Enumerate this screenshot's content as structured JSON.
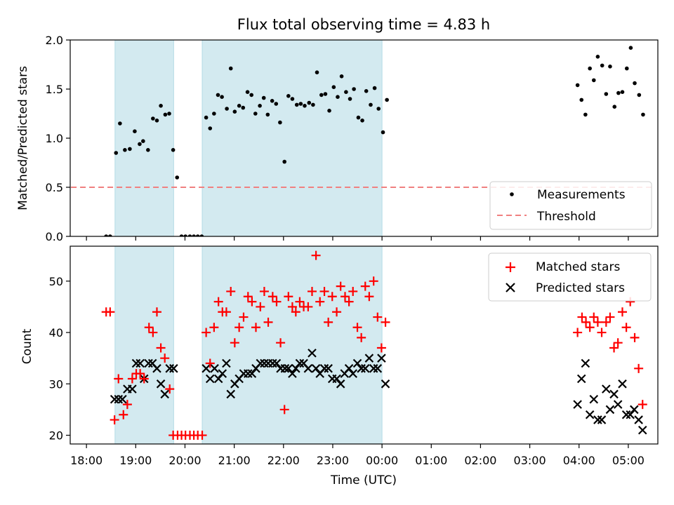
{
  "chart_data": {
    "type": "scatter",
    "title": "Flux total observing time = 4.83 h",
    "xlabel": "Time (UTC)",
    "x_unit": "hours since 18:00 UTC",
    "xlim": [
      -0.33,
      11.6
    ],
    "x_ticks": [
      {
        "x": 0,
        "label": "18:00"
      },
      {
        "x": 1,
        "label": "19:00"
      },
      {
        "x": 2,
        "label": "20:00"
      },
      {
        "x": 3,
        "label": "21:00"
      },
      {
        "x": 4,
        "label": "22:00"
      },
      {
        "x": 5,
        "label": "23:00"
      },
      {
        "x": 6,
        "label": "00:00"
      },
      {
        "x": 7,
        "label": "01:00"
      },
      {
        "x": 8,
        "label": "02:00"
      },
      {
        "x": 9,
        "label": "03:00"
      },
      {
        "x": 10,
        "label": "04:00"
      },
      {
        "x": 11,
        "label": "05:00"
      }
    ],
    "shaded_intervals": [
      [
        0.58,
        1.77
      ],
      [
        2.35,
        6.0
      ]
    ],
    "shade_color": "#d3eaf0",
    "top_panel": {
      "ylabel": "Matched/Predicted stars",
      "ylim": [
        0,
        2.0
      ],
      "y_ticks": [
        "0.0",
        "0.5",
        "1.0",
        "1.5",
        "2.0"
      ],
      "threshold": {
        "name": "Threshold",
        "value": 0.5,
        "x_range": [
          -0.5,
          11.5
        ],
        "color": "#f08080"
      },
      "legend": {
        "placement": "lower right",
        "measurements_label": "Measurements",
        "threshold_label": "Threshold"
      },
      "series": [
        {
          "name": "Measurements",
          "color": "#000000",
          "points": [
            [
              0.4,
              0.0
            ],
            [
              0.48,
              0.0
            ],
            [
              0.6,
              0.85
            ],
            [
              0.68,
              1.15
            ],
            [
              0.78,
              0.88
            ],
            [
              0.88,
              0.89
            ],
            [
              0.98,
              1.07
            ],
            [
              1.08,
              0.94
            ],
            [
              1.15,
              0.97
            ],
            [
              1.25,
              0.88
            ],
            [
              1.35,
              1.2
            ],
            [
              1.43,
              1.18
            ],
            [
              1.51,
              1.33
            ],
            [
              1.6,
              1.24
            ],
            [
              1.68,
              1.25
            ],
            [
              1.76,
              0.88
            ],
            [
              1.84,
              0.6
            ],
            [
              1.93,
              0.0
            ],
            [
              2.01,
              0.0
            ],
            [
              2.1,
              0.0
            ],
            [
              2.18,
              0.0
            ],
            [
              2.26,
              0.0
            ],
            [
              2.34,
              0.0
            ],
            [
              2.43,
              1.21
            ],
            [
              2.51,
              1.1
            ],
            [
              2.59,
              1.25
            ],
            [
              2.67,
              1.44
            ],
            [
              2.75,
              1.42
            ],
            [
              2.85,
              1.3
            ],
            [
              2.93,
              1.71
            ],
            [
              3.01,
              1.27
            ],
            [
              3.1,
              1.33
            ],
            [
              3.18,
              1.31
            ],
            [
              3.27,
              1.47
            ],
            [
              3.35,
              1.44
            ],
            [
              3.43,
              1.25
            ],
            [
              3.52,
              1.33
            ],
            [
              3.6,
              1.41
            ],
            [
              3.68,
              1.24
            ],
            [
              3.77,
              1.38
            ],
            [
              3.85,
              1.35
            ],
            [
              3.93,
              1.16
            ],
            [
              4.02,
              0.76
            ],
            [
              4.1,
              1.43
            ],
            [
              4.18,
              1.4
            ],
            [
              4.27,
              1.34
            ],
            [
              4.35,
              1.35
            ],
            [
              4.43,
              1.33
            ],
            [
              4.52,
              1.36
            ],
            [
              4.6,
              1.34
            ],
            [
              4.68,
              1.67
            ],
            [
              4.77,
              1.44
            ],
            [
              4.85,
              1.45
            ],
            [
              4.93,
              1.28
            ],
            [
              5.02,
              1.52
            ],
            [
              5.1,
              1.42
            ],
            [
              5.18,
              1.63
            ],
            [
              5.27,
              1.47
            ],
            [
              5.35,
              1.4
            ],
            [
              5.43,
              1.5
            ],
            [
              5.52,
              1.21
            ],
            [
              5.6,
              1.18
            ],
            [
              5.68,
              1.48
            ],
            [
              5.77,
              1.34
            ],
            [
              5.85,
              1.51
            ],
            [
              5.93,
              1.3
            ],
            [
              6.02,
              1.06
            ],
            [
              6.1,
              1.39
            ],
            [
              9.97,
              1.54
            ],
            [
              10.05,
              1.39
            ],
            [
              10.13,
              1.24
            ],
            [
              10.22,
              1.71
            ],
            [
              10.3,
              1.59
            ],
            [
              10.38,
              1.83
            ],
            [
              10.47,
              1.74
            ],
            [
              10.55,
              1.45
            ],
            [
              10.63,
              1.73
            ],
            [
              10.72,
              1.32
            ],
            [
              10.8,
              1.46
            ],
            [
              10.88,
              1.47
            ],
            [
              10.97,
              1.71
            ],
            [
              11.05,
              1.92
            ],
            [
              11.13,
              1.56
            ],
            [
              11.22,
              1.44
            ],
            [
              11.3,
              1.24
            ]
          ]
        }
      ]
    },
    "bottom_panel": {
      "ylabel": "Count",
      "ylim": [
        18.3,
        56.8
      ],
      "y_ticks": [
        20,
        30,
        40,
        50
      ],
      "legend": {
        "placement": "upper right",
        "matched_label": "Matched stars",
        "predicted_label": "Predicted stars"
      },
      "series": [
        {
          "name": "Matched stars",
          "marker": "+",
          "color": "#ff0000",
          "points": [
            [
              0.4,
              44
            ],
            [
              0.48,
              44
            ],
            [
              0.57,
              23
            ],
            [
              0.65,
              31
            ],
            [
              0.75,
              24
            ],
            [
              0.83,
              26
            ],
            [
              0.93,
              31
            ],
            [
              1.01,
              32
            ],
            [
              1.09,
              32
            ],
            [
              1.17,
              31
            ],
            [
              1.27,
              41
            ],
            [
              1.35,
              40
            ],
            [
              1.43,
              44
            ],
            [
              1.51,
              37
            ],
            [
              1.59,
              35
            ],
            [
              1.69,
              29
            ],
            [
              1.76,
              20
            ],
            [
              1.85,
              20
            ],
            [
              1.93,
              20
            ],
            [
              2.01,
              20
            ],
            [
              2.1,
              20
            ],
            [
              2.18,
              20
            ],
            [
              2.26,
              20
            ],
            [
              2.35,
              20
            ],
            [
              2.43,
              40
            ],
            [
              2.51,
              34
            ],
            [
              2.59,
              41
            ],
            [
              2.68,
              46
            ],
            [
              2.76,
              44
            ],
            [
              2.84,
              44
            ],
            [
              2.93,
              48
            ],
            [
              3.01,
              38
            ],
            [
              3.1,
              41
            ],
            [
              3.19,
              43
            ],
            [
              3.28,
              47
            ],
            [
              3.36,
              46
            ],
            [
              3.44,
              41
            ],
            [
              3.53,
              45
            ],
            [
              3.61,
              48
            ],
            [
              3.69,
              42
            ],
            [
              3.78,
              47
            ],
            [
              3.86,
              46
            ],
            [
              3.94,
              38
            ],
            [
              4.02,
              25
            ],
            [
              4.1,
              47
            ],
            [
              4.18,
              45
            ],
            [
              4.25,
              44
            ],
            [
              4.33,
              46
            ],
            [
              4.41,
              45
            ],
            [
              4.5,
              45
            ],
            [
              4.58,
              48
            ],
            [
              4.66,
              55
            ],
            [
              4.74,
              46
            ],
            [
              4.83,
              48
            ],
            [
              4.91,
              42
            ],
            [
              4.99,
              47
            ],
            [
              5.08,
              44
            ],
            [
              5.16,
              49
            ],
            [
              5.25,
              47
            ],
            [
              5.33,
              46
            ],
            [
              5.41,
              48
            ],
            [
              5.5,
              41
            ],
            [
              5.58,
              39
            ],
            [
              5.66,
              49
            ],
            [
              5.74,
              47
            ],
            [
              5.83,
              50
            ],
            [
              5.91,
              43
            ],
            [
              5.99,
              37
            ],
            [
              6.07,
              42
            ],
            [
              9.97,
              40
            ],
            [
              10.06,
              43
            ],
            [
              10.14,
              42
            ],
            [
              10.22,
              41
            ],
            [
              10.3,
              43
            ],
            [
              10.38,
              42
            ],
            [
              10.46,
              40
            ],
            [
              10.55,
              42
            ],
            [
              10.63,
              43
            ],
            [
              10.71,
              37
            ],
            [
              10.79,
              38
            ],
            [
              10.88,
              44
            ],
            [
              10.96,
              41
            ],
            [
              11.04,
              46
            ],
            [
              11.13,
              39
            ],
            [
              11.21,
              33
            ],
            [
              11.29,
              26
            ]
          ]
        },
        {
          "name": "Predicted stars",
          "marker": "x",
          "color": "#000000",
          "points": [
            [
              0.57,
              27
            ],
            [
              0.65,
              27
            ],
            [
              0.73,
              27
            ],
            [
              0.83,
              29
            ],
            [
              0.93,
              29
            ],
            [
              1.01,
              34
            ],
            [
              1.09,
              34
            ],
            [
              1.17,
              31
            ],
            [
              1.26,
              34
            ],
            [
              1.34,
              34
            ],
            [
              1.43,
              33
            ],
            [
              1.51,
              30
            ],
            [
              1.59,
              28
            ],
            [
              1.69,
              33
            ],
            [
              1.77,
              33
            ],
            [
              2.43,
              33
            ],
            [
              2.51,
              31
            ],
            [
              2.6,
              33
            ],
            [
              2.68,
              31
            ],
            [
              2.76,
              32
            ],
            [
              2.84,
              34
            ],
            [
              2.93,
              28
            ],
            [
              3.01,
              30
            ],
            [
              3.1,
              31
            ],
            [
              3.19,
              32
            ],
            [
              3.28,
              32
            ],
            [
              3.36,
              32
            ],
            [
              3.44,
              33
            ],
            [
              3.53,
              34
            ],
            [
              3.61,
              34
            ],
            [
              3.69,
              34
            ],
            [
              3.78,
              34
            ],
            [
              3.86,
              34
            ],
            [
              3.94,
              33
            ],
            [
              4.03,
              33
            ],
            [
              4.1,
              33
            ],
            [
              4.18,
              32
            ],
            [
              4.25,
              33
            ],
            [
              4.33,
              34
            ],
            [
              4.41,
              34
            ],
            [
              4.5,
              33
            ],
            [
              4.58,
              36
            ],
            [
              4.66,
              33
            ],
            [
              4.74,
              32
            ],
            [
              4.83,
              33
            ],
            [
              4.91,
              33
            ],
            [
              4.99,
              31
            ],
            [
              5.08,
              31
            ],
            [
              5.16,
              30
            ],
            [
              5.24,
              32
            ],
            [
              5.33,
              33
            ],
            [
              5.41,
              32
            ],
            [
              5.5,
              34
            ],
            [
              5.58,
              33
            ],
            [
              5.66,
              33
            ],
            [
              5.74,
              35
            ],
            [
              5.83,
              33
            ],
            [
              5.91,
              33
            ],
            [
              5.99,
              35
            ],
            [
              6.07,
              30
            ],
            [
              9.97,
              26
            ],
            [
              10.05,
              31
            ],
            [
              10.13,
              34
            ],
            [
              10.22,
              24
            ],
            [
              10.3,
              27
            ],
            [
              10.38,
              23
            ],
            [
              10.46,
              23
            ],
            [
              10.55,
              29
            ],
            [
              10.63,
              25
            ],
            [
              10.71,
              28
            ],
            [
              10.79,
              26
            ],
            [
              10.88,
              30
            ],
            [
              10.96,
              24
            ],
            [
              11.04,
              24
            ],
            [
              11.12,
              25
            ],
            [
              11.21,
              23
            ],
            [
              11.29,
              21
            ]
          ]
        }
      ]
    }
  }
}
